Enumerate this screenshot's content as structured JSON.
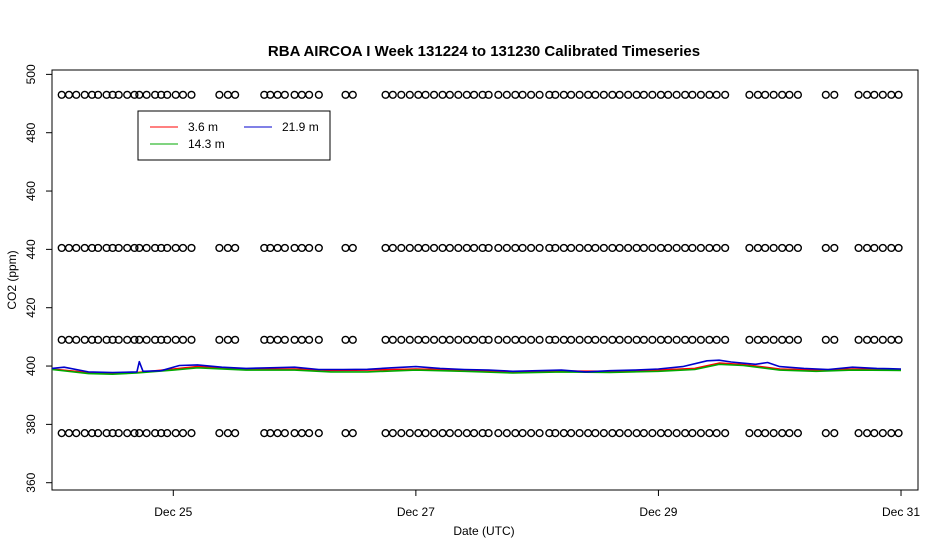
{
  "chart_data": {
    "type": "line",
    "title": "RBA AIRCOA I  Week 131224 to 131230  Calibrated Timeseries",
    "xlabel": "Date (UTC)",
    "ylabel": "CO2 (ppm)",
    "xlim": [
      24.0,
      31.14
    ],
    "ylim": [
      357.5,
      501.5
    ],
    "x_ticks": [
      {
        "value": 25,
        "label": "Dec 25"
      },
      {
        "value": 27,
        "label": "Dec 27"
      },
      {
        "value": 29,
        "label": "Dec 29"
      },
      {
        "value": 31,
        "label": "Dec 31"
      }
    ],
    "y_ticks": [
      360,
      380,
      400,
      420,
      440,
      460,
      480,
      500
    ],
    "legend": {
      "placement": "top-left",
      "entries": [
        {
          "label": "3.6 m",
          "color": "#ff0000"
        },
        {
          "label": "21.9 m",
          "color": "#0000cc"
        },
        {
          "label": "14.3 m",
          "color": "#00aa00"
        }
      ]
    },
    "series": [
      {
        "name": "3.6 m",
        "color": "#ff0000",
        "x": [
          24.0,
          24.3,
          24.5,
          24.7,
          25.0,
          25.2,
          25.6,
          26.0,
          26.3,
          26.6,
          27.0,
          27.4,
          27.8,
          28.2,
          28.6,
          29.0,
          29.3,
          29.5,
          29.7,
          30.0,
          30.3,
          30.6,
          31.0
        ],
        "y": [
          399.0,
          397.8,
          397.5,
          397.8,
          399.0,
          399.8,
          399.0,
          399.0,
          398.5,
          398.6,
          399.0,
          398.6,
          398.0,
          398.3,
          398.2,
          398.6,
          399.2,
          401.0,
          400.5,
          399.0,
          398.6,
          399.0,
          398.8
        ]
      },
      {
        "name": "14.3 m",
        "color": "#00aa00",
        "x": [
          24.0,
          24.3,
          24.5,
          24.7,
          25.0,
          25.2,
          25.6,
          26.0,
          26.3,
          26.6,
          27.0,
          27.4,
          27.8,
          28.2,
          28.6,
          29.0,
          29.3,
          29.5,
          29.7,
          30.0,
          30.3,
          30.6,
          31.0
        ],
        "y": [
          398.8,
          397.4,
          397.2,
          397.6,
          398.6,
          399.4,
          398.6,
          398.6,
          398.0,
          398.0,
          398.6,
          398.2,
          397.6,
          398.0,
          397.8,
          398.2,
          398.8,
          400.6,
          400.2,
          398.6,
          398.2,
          398.6,
          398.5
        ]
      },
      {
        "name": "21.9 m",
        "color": "#0000cc",
        "x": [
          24.0,
          24.1,
          24.3,
          24.5,
          24.7,
          24.72,
          24.75,
          24.9,
          25.05,
          25.2,
          25.4,
          25.6,
          25.8,
          26.0,
          26.2,
          26.4,
          26.6,
          26.8,
          27.0,
          27.2,
          27.4,
          27.6,
          27.8,
          28.0,
          28.2,
          28.4,
          28.6,
          28.8,
          29.0,
          29.2,
          29.4,
          29.5,
          29.6,
          29.8,
          29.9,
          30.0,
          30.2,
          30.4,
          30.6,
          30.8,
          31.0
        ],
        "y": [
          399.2,
          399.6,
          398.0,
          397.8,
          398.0,
          401.5,
          398.2,
          398.4,
          400.2,
          400.4,
          399.6,
          399.2,
          399.4,
          399.6,
          398.8,
          398.8,
          398.9,
          399.4,
          399.8,
          399.2,
          398.8,
          398.6,
          398.2,
          398.4,
          398.6,
          398.0,
          398.4,
          398.6,
          399.0,
          399.8,
          401.8,
          402.0,
          401.4,
          400.6,
          401.2,
          399.8,
          399.2,
          398.8,
          399.6,
          399.2,
          399.0
        ]
      }
    ],
    "calibration_markers": {
      "levels": [
        493,
        440.5,
        409,
        377
      ],
      "x": [
        24.08,
        24.14,
        24.2,
        24.27,
        24.33,
        24.38,
        24.45,
        24.5,
        24.55,
        24.62,
        24.68,
        24.72,
        24.78,
        24.85,
        24.9,
        24.95,
        25.02,
        25.08,
        25.15,
        25.38,
        25.45,
        25.51,
        25.75,
        25.8,
        25.86,
        25.92,
        26.0,
        26.06,
        26.12,
        26.2,
        26.42,
        26.48,
        26.75,
        26.81,
        26.88,
        26.95,
        27.02,
        27.08,
        27.15,
        27.22,
        27.28,
        27.35,
        27.42,
        27.48,
        27.55,
        27.6,
        27.68,
        27.75,
        27.82,
        27.88,
        27.95,
        28.02,
        28.1,
        28.15,
        28.22,
        28.28,
        28.35,
        28.42,
        28.48,
        28.55,
        28.62,
        28.68,
        28.75,
        28.82,
        28.88,
        28.95,
        29.02,
        29.08,
        29.15,
        29.22,
        29.28,
        29.35,
        29.42,
        29.48,
        29.55,
        29.75,
        29.82,
        29.88,
        29.95,
        30.02,
        30.08,
        30.15,
        30.38,
        30.45,
        30.65,
        30.72,
        30.78,
        30.85,
        30.92,
        30.98
      ]
    }
  }
}
